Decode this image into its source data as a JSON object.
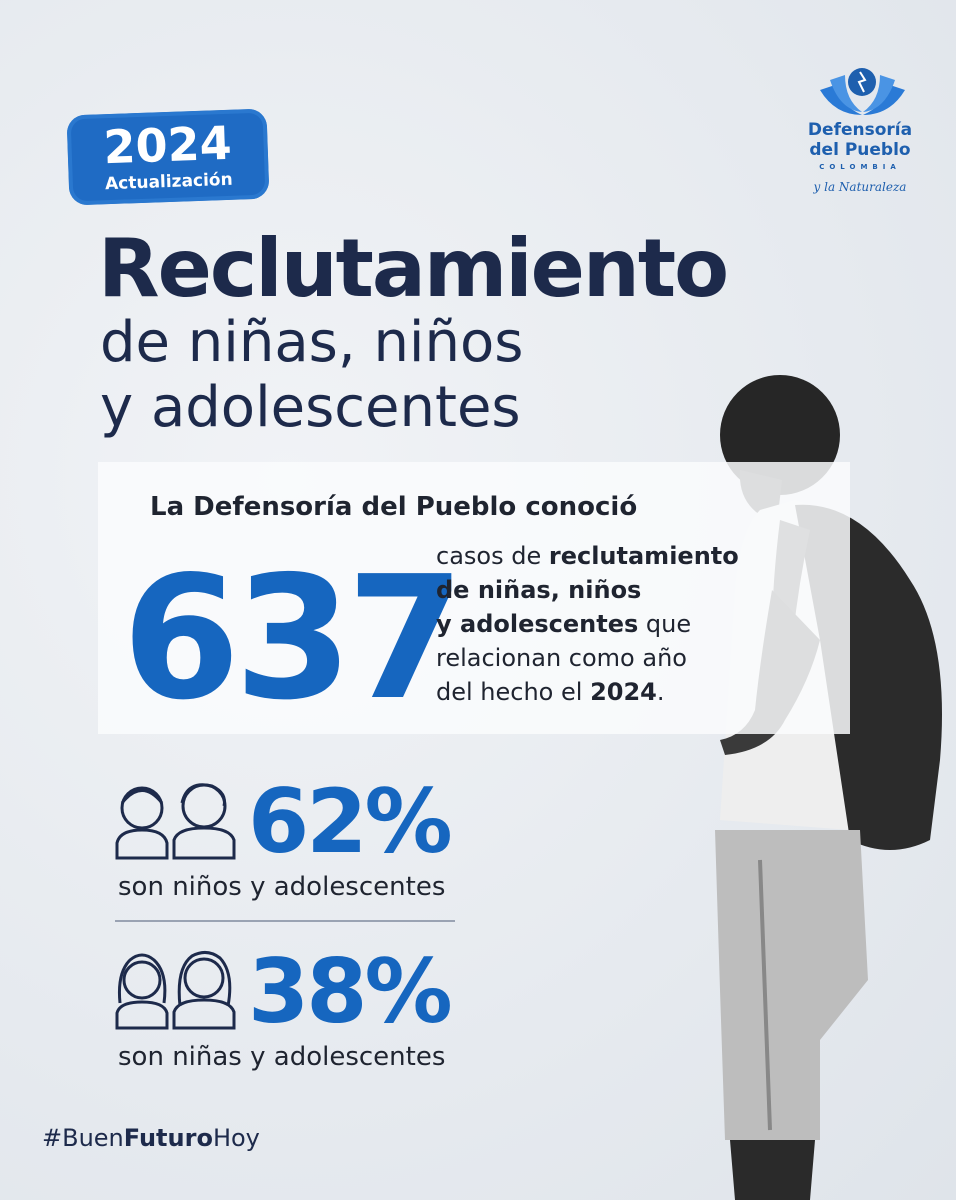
{
  "badge": {
    "year": "2024",
    "label": "Actualización"
  },
  "title": "Reclutamiento",
  "subtitle": [
    "de niñas, niños",
    "y adolescentes"
  ],
  "logo": {
    "name_lines": [
      "Defensoría",
      "del Pueblo"
    ],
    "country": "COLOMBIA",
    "tagline": "y la Naturaleza"
  },
  "highlight": {
    "intro": "La Defensoría del Pueblo conoció",
    "number": 637,
    "description": [
      [
        {
          "text": "casos de ",
          "bold": false
        },
        {
          "text": "reclutamiento",
          "bold": true
        }
      ],
      [
        {
          "text": "de niñas, niños",
          "bold": true
        }
      ],
      [
        {
          "text": "y adolescentes",
          "bold": true
        },
        {
          "text": " que",
          "bold": false
        }
      ],
      [
        {
          "text": "relacionan como año",
          "bold": false
        }
      ],
      [
        {
          "text": "del hecho el ",
          "bold": false
        },
        {
          "text": "2024",
          "bold": true
        },
        {
          "text": ".",
          "bold": false
        }
      ]
    ]
  },
  "stats": [
    {
      "value": "62%",
      "label": "son niños y adolescentes"
    },
    {
      "value": "38%",
      "label": "son niñas y adolescentes"
    }
  ],
  "hashtag": [
    {
      "text": "#Buen",
      "bold": false
    },
    {
      "text": "Futuro",
      "bold": true
    },
    {
      "text": "Hoy",
      "bold": false
    }
  ]
}
